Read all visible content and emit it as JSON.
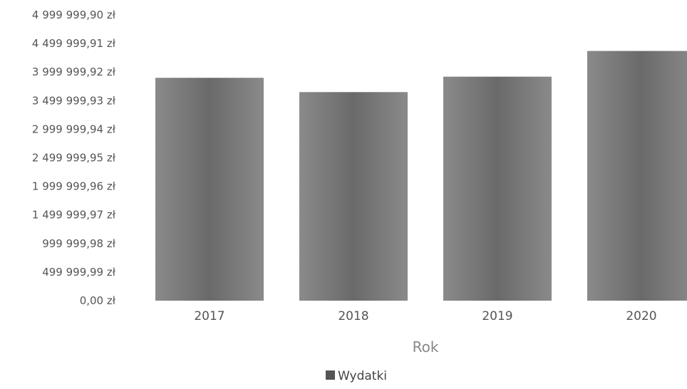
{
  "chart_data": {
    "type": "bar",
    "categories": [
      "2017",
      "2018",
      "2019",
      "2020"
    ],
    "series": [
      {
        "name": "Wydatki",
        "values": [
          3900000,
          3650000,
          3920000,
          4370000
        ]
      }
    ],
    "xlabel": "Rok",
    "ylabel": "",
    "ylim": [
      0,
      4999999.9
    ],
    "yticks": [
      "0,00 zł",
      "499 999,99 zł",
      "999 999,98 zł",
      "1 499 999,97 zł",
      "1 999 999,96 zł",
      "2 499 999,95 zł",
      "2 999 999,94 zł",
      "3 499 999,93 zł",
      "3 999 999,92 zł",
      "4 499 999,91 zł",
      "4 999 999,90 zł"
    ],
    "legend": {
      "position": "bottom-center",
      "label": "Wydatki"
    },
    "grid": false,
    "colors": {
      "bar": "#6e6e6e",
      "bar_light": "#8a8a8a",
      "legend_swatch": "#555555"
    }
  }
}
